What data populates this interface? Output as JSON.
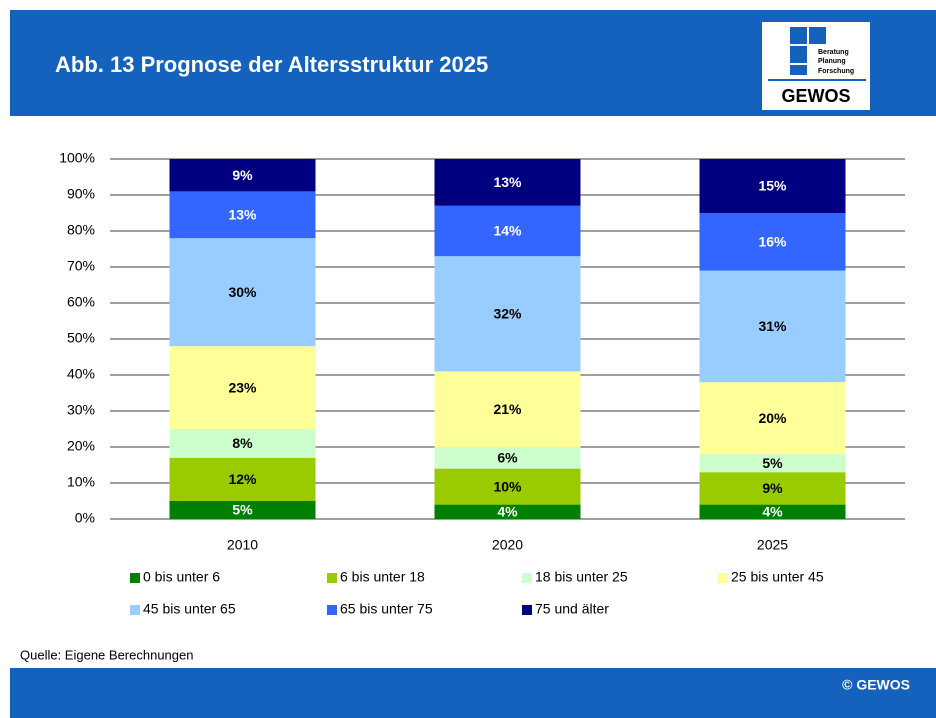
{
  "header": {
    "title": "Abb. 13  Prognose der Altersstruktur 2025"
  },
  "logo": {
    "lines": [
      "Beratung",
      "Planung",
      "Forschung"
    ],
    "name": "GEWOS"
  },
  "source": "Quelle: Eigene Berechnungen",
  "copyright": "© GEWOS",
  "chart_data": {
    "type": "stacked_bar",
    "categories": [
      "2010",
      "2020",
      "2025"
    ],
    "series": [
      {
        "name": "0 bis unter 6",
        "color": "#008000",
        "label_color": "#ffffff",
        "values": [
          5,
          4,
          4
        ],
        "value_labels": [
          "5%",
          "4%",
          "4%"
        ]
      },
      {
        "name": "6 bis unter 18",
        "color": "#99cc00",
        "label_color": "#000000",
        "values": [
          12,
          10,
          9
        ],
        "value_labels": [
          "12%",
          "10%",
          "9%"
        ]
      },
      {
        "name": "18 bis unter 25",
        "color": "#ccffcc",
        "label_color": "#000000",
        "values": [
          8,
          6,
          5
        ],
        "value_labels": [
          "8%",
          "6%",
          "5%"
        ]
      },
      {
        "name": "25 bis unter 45",
        "color": "#ffff99",
        "label_color": "#000000",
        "values": [
          23,
          21,
          20
        ],
        "value_labels": [
          "23%",
          "21%",
          "20%"
        ]
      },
      {
        "name": "45 bis unter  65",
        "color": "#99ccff",
        "label_color": "#000000",
        "values": [
          30,
          32,
          31
        ],
        "value_labels": [
          "30%",
          "32%",
          "31%"
        ]
      },
      {
        "name": "65 bis unter 75",
        "color": "#3366ff",
        "label_color": "#ffffff",
        "values": [
          13,
          14,
          16
        ],
        "value_labels": [
          "13%",
          "14%",
          "16%"
        ]
      },
      {
        "name": "75 und älter",
        "color": "#000080",
        "label_color": "#ffffff",
        "values": [
          9,
          13,
          15
        ],
        "value_labels": [
          "9%",
          "13%",
          "15%"
        ]
      }
    ],
    "ylim": [
      0,
      100
    ],
    "yticks": [
      {
        "value": 0,
        "label": "0%"
      },
      {
        "value": 10,
        "label": "10%"
      },
      {
        "value": 20,
        "label": "20%"
      },
      {
        "value": 30,
        "label": "30%"
      },
      {
        "value": 40,
        "label": "40%"
      },
      {
        "value": 50,
        "label": "50%"
      },
      {
        "value": 60,
        "label": "60%"
      },
      {
        "value": 70,
        "label": "70%"
      },
      {
        "value": 80,
        "label": "80%"
      },
      {
        "value": 90,
        "label": "90%"
      },
      {
        "value": 100,
        "label": "100%"
      }
    ],
    "grid": true
  }
}
